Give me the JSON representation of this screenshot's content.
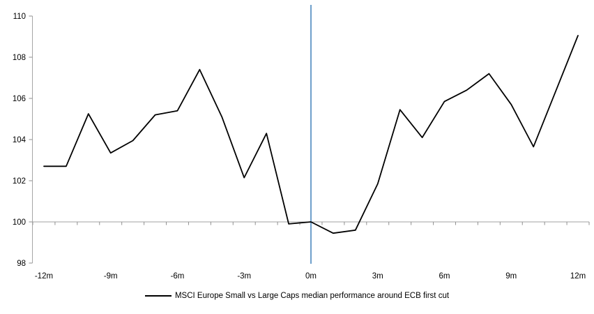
{
  "chart_data": {
    "type": "line",
    "title": "",
    "xlabel": "",
    "ylabel": "",
    "x_unit": "months relative to ECB first cut",
    "x": [
      -12,
      -11,
      -10,
      -9,
      -8,
      -7,
      -6,
      -5,
      -4,
      -3,
      -2,
      -1,
      0,
      1,
      2,
      3,
      4,
      5,
      6,
      7,
      8,
      9,
      10,
      11,
      12
    ],
    "series": [
      {
        "name": "MSCI Europe Small vs Large Caps median performance around ECB first cut",
        "color": "#000000",
        "values": [
          102.7,
          102.7,
          105.25,
          103.35,
          103.95,
          105.2,
          105.4,
          107.4,
          105.1,
          102.15,
          104.3,
          99.9,
          100.0,
          99.45,
          99.6,
          101.85,
          105.45,
          104.1,
          105.85,
          106.4,
          107.2,
          105.7,
          103.65,
          106.35,
          109.05
        ]
      }
    ],
    "ylim": [
      98,
      110
    ],
    "y_ticks": [
      98,
      100,
      102,
      104,
      106,
      108,
      110
    ],
    "x_ticks": [
      {
        "m": -12,
        "label": "-12m"
      },
      {
        "m": -9,
        "label": "-9m"
      },
      {
        "m": -6,
        "label": "-6m"
      },
      {
        "m": -3,
        "label": "-3m"
      },
      {
        "m": 0,
        "label": "0m"
      },
      {
        "m": 3,
        "label": "3m"
      },
      {
        "m": 6,
        "label": "6m"
      },
      {
        "m": 9,
        "label": "9m"
      },
      {
        "m": 12,
        "label": "12m"
      }
    ],
    "baseline_value": 100,
    "event_line_x": 0,
    "grid": "off",
    "legend_position": "bottom"
  },
  "legend": {
    "label": "MSCI Europe Small vs Large Caps median performance around ECB first cut"
  },
  "colors": {
    "series_line": "#000000",
    "event_line": "#74a3cd",
    "axis_line": "#a6a6a6",
    "baseline": "#a0a0a0",
    "tick": "#8f8f8f",
    "label_text": "#000000",
    "background": "#ffffff"
  }
}
